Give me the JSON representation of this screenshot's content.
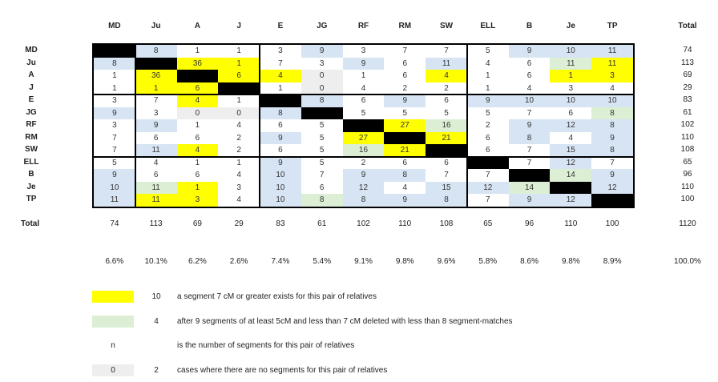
{
  "header": {
    "columns": [
      "MD",
      "Ju",
      "A",
      "J",
      "E",
      "JG",
      "RF",
      "RM",
      "SW",
      "ELL",
      "B",
      "Je",
      "TP"
    ],
    "total_label": "Total"
  },
  "rows": [
    {
      "label": "MD",
      "total": "74",
      "cells": [
        [
          "",
          "B"
        ],
        [
          "8",
          "b"
        ],
        [
          "1",
          "w"
        ],
        [
          "1",
          "w"
        ],
        [
          "3",
          "w"
        ],
        [
          "9",
          "b"
        ],
        [
          "3",
          "w"
        ],
        [
          "7",
          "w"
        ],
        [
          "7",
          "w"
        ],
        [
          "5",
          "w"
        ],
        [
          "9",
          "b"
        ],
        [
          "10",
          "b"
        ],
        [
          "11",
          "b"
        ]
      ]
    },
    {
      "label": "Ju",
      "total": "113",
      "cells": [
        [
          "8",
          "b"
        ],
        [
          "",
          "B"
        ],
        [
          "36",
          "y"
        ],
        [
          "1",
          "y"
        ],
        [
          "7",
          "w"
        ],
        [
          "3",
          "w"
        ],
        [
          "9",
          "b"
        ],
        [
          "6",
          "w"
        ],
        [
          "11",
          "b"
        ],
        [
          "4",
          "w"
        ],
        [
          "6",
          "w"
        ],
        [
          "11",
          "g"
        ],
        [
          "11",
          "y"
        ]
      ]
    },
    {
      "label": "A",
      "total": "69",
      "cells": [
        [
          "1",
          "w"
        ],
        [
          "36",
          "y"
        ],
        [
          "",
          "B"
        ],
        [
          "6",
          "y"
        ],
        [
          "4",
          "y"
        ],
        [
          "0",
          "z"
        ],
        [
          "1",
          "w"
        ],
        [
          "6",
          "w"
        ],
        [
          "4",
          "y"
        ],
        [
          "1",
          "w"
        ],
        [
          "6",
          "w"
        ],
        [
          "1",
          "y"
        ],
        [
          "3",
          "y"
        ]
      ]
    },
    {
      "label": "J",
      "total": "29",
      "cells": [
        [
          "1",
          "w"
        ],
        [
          "1",
          "y"
        ],
        [
          "6",
          "y"
        ],
        [
          "",
          "B"
        ],
        [
          "1",
          "w"
        ],
        [
          "0",
          "z"
        ],
        [
          "4",
          "w"
        ],
        [
          "2",
          "w"
        ],
        [
          "2",
          "w"
        ],
        [
          "1",
          "w"
        ],
        [
          "4",
          "w"
        ],
        [
          "3",
          "w"
        ],
        [
          "4",
          "w"
        ]
      ]
    },
    {
      "label": "E",
      "total": "83",
      "cells": [
        [
          "3",
          "w"
        ],
        [
          "7",
          "w"
        ],
        [
          "4",
          "y"
        ],
        [
          "1",
          "w"
        ],
        [
          "",
          "B"
        ],
        [
          "8",
          "b"
        ],
        [
          "6",
          "w"
        ],
        [
          "9",
          "b"
        ],
        [
          "6",
          "w"
        ],
        [
          "9",
          "b"
        ],
        [
          "10",
          "b"
        ],
        [
          "10",
          "b"
        ],
        [
          "10",
          "b"
        ]
      ]
    },
    {
      "label": "JG",
      "total": "61",
      "cells": [
        [
          "9",
          "b"
        ],
        [
          "3",
          "w"
        ],
        [
          "0",
          "z"
        ],
        [
          "0",
          "z"
        ],
        [
          "8",
          "b"
        ],
        [
          "",
          "B"
        ],
        [
          "5",
          "w"
        ],
        [
          "5",
          "w"
        ],
        [
          "5",
          "w"
        ],
        [
          "5",
          "w"
        ],
        [
          "7",
          "w"
        ],
        [
          "6",
          "w"
        ],
        [
          "8",
          "g"
        ]
      ]
    },
    {
      "label": "RF",
      "total": "102",
      "cells": [
        [
          "3",
          "w"
        ],
        [
          "9",
          "b"
        ],
        [
          "1",
          "w"
        ],
        [
          "4",
          "w"
        ],
        [
          "6",
          "w"
        ],
        [
          "5",
          "w"
        ],
        [
          "",
          "B"
        ],
        [
          "27",
          "y"
        ],
        [
          "16",
          "g"
        ],
        [
          "2",
          "w"
        ],
        [
          "9",
          "b"
        ],
        [
          "12",
          "b"
        ],
        [
          "8",
          "b"
        ]
      ]
    },
    {
      "label": "RM",
      "total": "110",
      "cells": [
        [
          "7",
          "w"
        ],
        [
          "6",
          "w"
        ],
        [
          "6",
          "w"
        ],
        [
          "2",
          "w"
        ],
        [
          "9",
          "b"
        ],
        [
          "5",
          "w"
        ],
        [
          "27",
          "y"
        ],
        [
          "",
          "B"
        ],
        [
          "21",
          "y"
        ],
        [
          "6",
          "w"
        ],
        [
          "8",
          "b"
        ],
        [
          "4",
          "w"
        ],
        [
          "9",
          "b"
        ]
      ]
    },
    {
      "label": "SW",
      "total": "108",
      "cells": [
        [
          "7",
          "w"
        ],
        [
          "11",
          "b"
        ],
        [
          "4",
          "y"
        ],
        [
          "2",
          "w"
        ],
        [
          "6",
          "w"
        ],
        [
          "5",
          "w"
        ],
        [
          "16",
          "g"
        ],
        [
          "21",
          "y"
        ],
        [
          "",
          "B"
        ],
        [
          "6",
          "w"
        ],
        [
          "7",
          "w"
        ],
        [
          "15",
          "b"
        ],
        [
          "8",
          "b"
        ]
      ]
    },
    {
      "label": "ELL",
      "total": "65",
      "cells": [
        [
          "5",
          "w"
        ],
        [
          "4",
          "w"
        ],
        [
          "1",
          "w"
        ],
        [
          "1",
          "w"
        ],
        [
          "9",
          "b"
        ],
        [
          "5",
          "w"
        ],
        [
          "2",
          "w"
        ],
        [
          "6",
          "w"
        ],
        [
          "6",
          "w"
        ],
        [
          "",
          "B"
        ],
        [
          "7",
          "w"
        ],
        [
          "12",
          "b"
        ],
        [
          "7",
          "w"
        ]
      ]
    },
    {
      "label": "B",
      "total": "96",
      "cells": [
        [
          "9",
          "b"
        ],
        [
          "6",
          "w"
        ],
        [
          "6",
          "w"
        ],
        [
          "4",
          "w"
        ],
        [
          "10",
          "b"
        ],
        [
          "7",
          "w"
        ],
        [
          "9",
          "b"
        ],
        [
          "8",
          "b"
        ],
        [
          "7",
          "w"
        ],
        [
          "7",
          "w"
        ],
        [
          "",
          "B"
        ],
        [
          "14",
          "g"
        ],
        [
          "9",
          "b"
        ]
      ]
    },
    {
      "label": "Je",
      "total": "110",
      "cells": [
        [
          "10",
          "b"
        ],
        [
          "11",
          "g"
        ],
        [
          "1",
          "y"
        ],
        [
          "3",
          "w"
        ],
        [
          "10",
          "b"
        ],
        [
          "6",
          "w"
        ],
        [
          "12",
          "b"
        ],
        [
          "4",
          "w"
        ],
        [
          "15",
          "b"
        ],
        [
          "12",
          "b"
        ],
        [
          "14",
          "g"
        ],
        [
          "",
          "B"
        ],
        [
          "12",
          "b"
        ]
      ]
    },
    {
      "label": "TP",
      "total": "100",
      "cells": [
        [
          "11",
          "b"
        ],
        [
          "11",
          "y"
        ],
        [
          "3",
          "y"
        ],
        [
          "4",
          "w"
        ],
        [
          "10",
          "b"
        ],
        [
          "8",
          "g"
        ],
        [
          "8",
          "b"
        ],
        [
          "9",
          "b"
        ],
        [
          "8",
          "b"
        ],
        [
          "7",
          "w"
        ],
        [
          "9",
          "b"
        ],
        [
          "12",
          "b"
        ],
        [
          "",
          "B"
        ]
      ]
    }
  ],
  "totals_row": {
    "label": "Total",
    "values": [
      "74",
      "113",
      "69",
      "29",
      "83",
      "61",
      "102",
      "110",
      "108",
      "65",
      "96",
      "110",
      "100"
    ],
    "grand_total": "1120"
  },
  "percent_row": {
    "values": [
      "6.6%",
      "10.1%",
      "6.2%",
      "2.6%",
      "7.4%",
      "5.4%",
      "9.1%",
      "9.8%",
      "9.6%",
      "5.8%",
      "8.6%",
      "9.8%",
      "8.9%"
    ],
    "grand_total": "100.0%"
  },
  "legend": [
    {
      "swatch_text": "",
      "color": "#ffff00",
      "count": "10",
      "text": "a segment 7 cM or greater exists for this pair of relatives"
    },
    {
      "swatch_text": "",
      "color": "#dcefd4",
      "count": "4",
      "text": "after 9 segments of at least 5cM and less than 7 cM deleted with less than 8 segment-matches"
    },
    {
      "swatch_text": "n",
      "color": "#ffffff",
      "count": "",
      "text": "is the number of segments for this pair of relatives"
    },
    {
      "swatch_text": "0",
      "color": "#eeeeee",
      "count": "2",
      "text": "cases where there are no segments for this pair of relatives"
    }
  ],
  "colors": {
    "diagonal": "#000000",
    "yellow": "#ffff00",
    "green": "#dcefd4",
    "blue": "#d6e4f3",
    "gray": "#eeeeee"
  }
}
